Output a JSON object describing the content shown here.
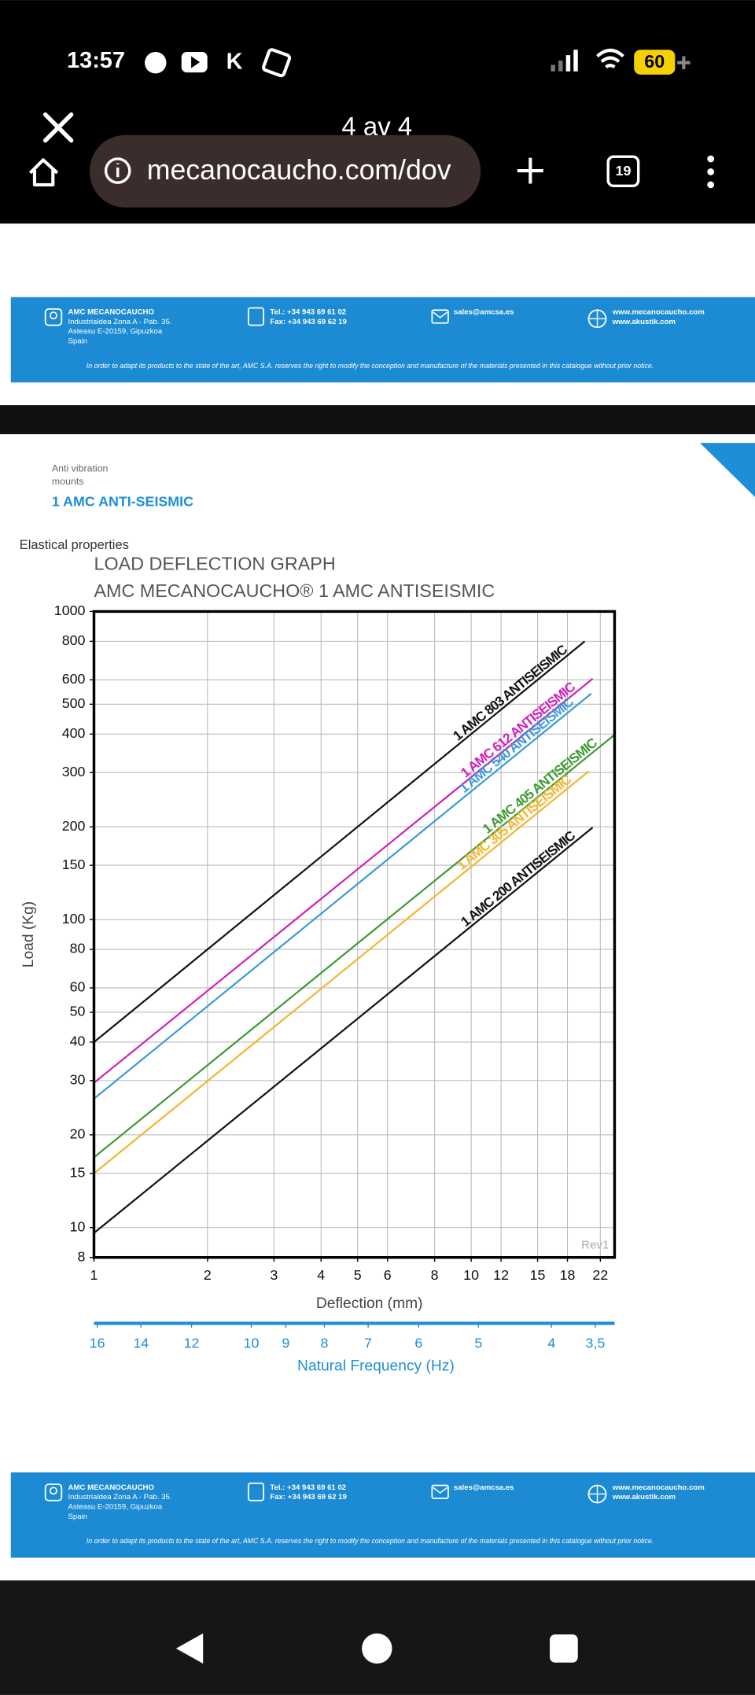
{
  "status_bar": {
    "time": "13:57",
    "app_letter": "K",
    "battery": "60"
  },
  "browser": {
    "tab_title": "4 av 4",
    "url": "mecanocaucho.com/dov",
    "tab_count": "19"
  },
  "banner": {
    "company": "AMC MECANOCAUCHO",
    "address": [
      "Industrialdea Zona A - Pab. 35.",
      "Asteasu E-20159, Gipuzkoa",
      "Spain"
    ],
    "phone": [
      "Tel.: +34 943 69 61 02",
      "Fax: +34 943 69 62 19"
    ],
    "email": "sales@amcsa.es",
    "web": [
      "www.mecanocaucho.com",
      "www.akustik.com"
    ],
    "disclaimer": "In order to adapt its products to the state of the art, AMC S.A. reserves the right to modify the conception and manufacture of the materials presented in this catalogue without prior notice."
  },
  "page_header": {
    "category": [
      "Anti vibration",
      "mounts"
    ],
    "product": "1 AMC ANTI-SEISMIC",
    "section": "Elastical properties"
  },
  "chart_data": {
    "type": "line",
    "title": "LOAD DEFLECTION GRAPH",
    "subtitle": "AMC MECANOCAUCHO® 1 AMC ANTISEISMIC",
    "x_label": "Deflection (mm)",
    "y_label": "Load (Kg)",
    "xscale": "log",
    "yscale": "log",
    "xlim": [
      1,
      24
    ],
    "ylim": [
      8,
      1000
    ],
    "xticks": [
      1,
      2,
      3,
      4,
      5,
      6,
      8,
      10,
      12,
      15,
      18,
      22
    ],
    "yticks": [
      8,
      10,
      15,
      20,
      30,
      40,
      50,
      60,
      80,
      100,
      150,
      200,
      300,
      400,
      500,
      600,
      800,
      1000
    ],
    "grid": true,
    "x2_label": "Natural Frequency (Hz)",
    "x2scale": "log",
    "x2lim": [
      16.16,
      3.3
    ],
    "x2ticks": [
      16,
      14,
      12,
      10,
      9,
      8,
      7,
      6,
      5,
      4,
      {
        "value": 3.5,
        "label": "3,5"
      }
    ],
    "x2color": "#1e8fd6",
    "watermark": "Rev1",
    "series": [
      {
        "name": "1 AMC 803 ANTISEISMIC",
        "color": "#111111",
        "x": [
          1,
          20
        ],
        "values": [
          40,
          800
        ]
      },
      {
        "name": "1 AMC 612 ANTISEISMIC",
        "color": "#d020b8",
        "x": [
          1,
          21
        ],
        "values": [
          29.5,
          605
        ]
      },
      {
        "name": "1 AMC 540 ANTISEISMIC",
        "color": "#3a9ad9",
        "x": [
          1,
          20.8
        ],
        "values": [
          26.2,
          541
        ]
      },
      {
        "name": "1 AMC 405 ANTISEISMIC",
        "color": "#3c9a34",
        "x": [
          1,
          24
        ],
        "values": [
          16.9,
          398
        ]
      },
      {
        "name": "1 AMC 305 ANTISEISMIC",
        "color": "#f3b530",
        "x": [
          1,
          20.5
        ],
        "values": [
          15,
          303
        ]
      },
      {
        "name": "1 AMC 200 ANTISEISMIC",
        "color": "#111111",
        "x": [
          1,
          21
        ],
        "values": [
          9.6,
          199
        ]
      }
    ]
  }
}
